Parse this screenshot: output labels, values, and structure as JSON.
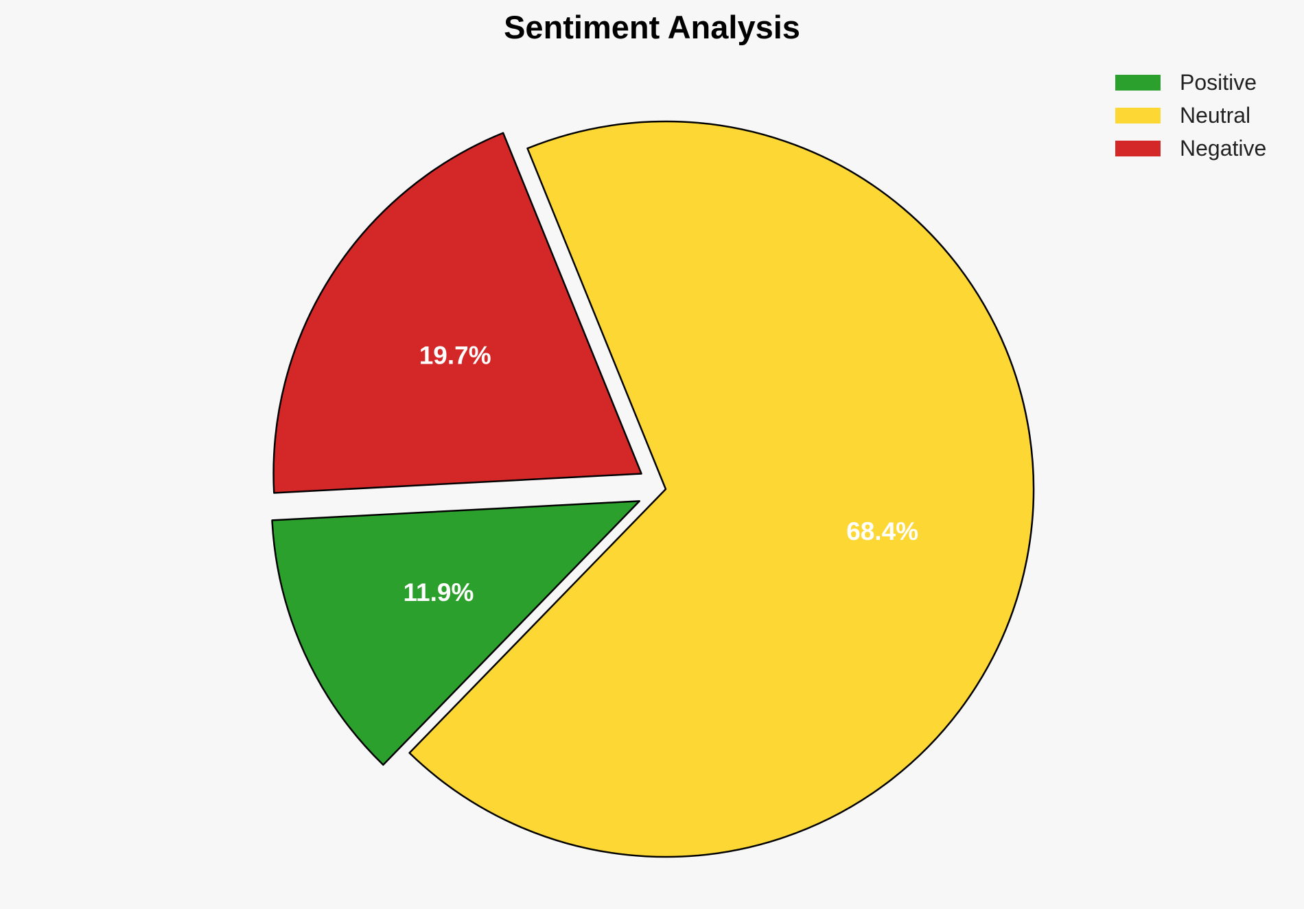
{
  "chart_data": {
    "type": "pie",
    "title": "Sentiment Analysis",
    "slices": [
      {
        "label": "Positive",
        "value": 11.9,
        "display": "11.9%",
        "color": "#2ca02c",
        "exploded": true
      },
      {
        "label": "Neutral",
        "value": 68.4,
        "display": "68.4%",
        "color": "#fdd835",
        "exploded": false
      },
      {
        "label": "Negative",
        "value": 19.7,
        "display": "19.7%",
        "color": "#d32728",
        "exploded": true
      }
    ],
    "legend_placement": "top-right",
    "slice_edge_color": "#000000",
    "label_color": "#ffffff"
  }
}
